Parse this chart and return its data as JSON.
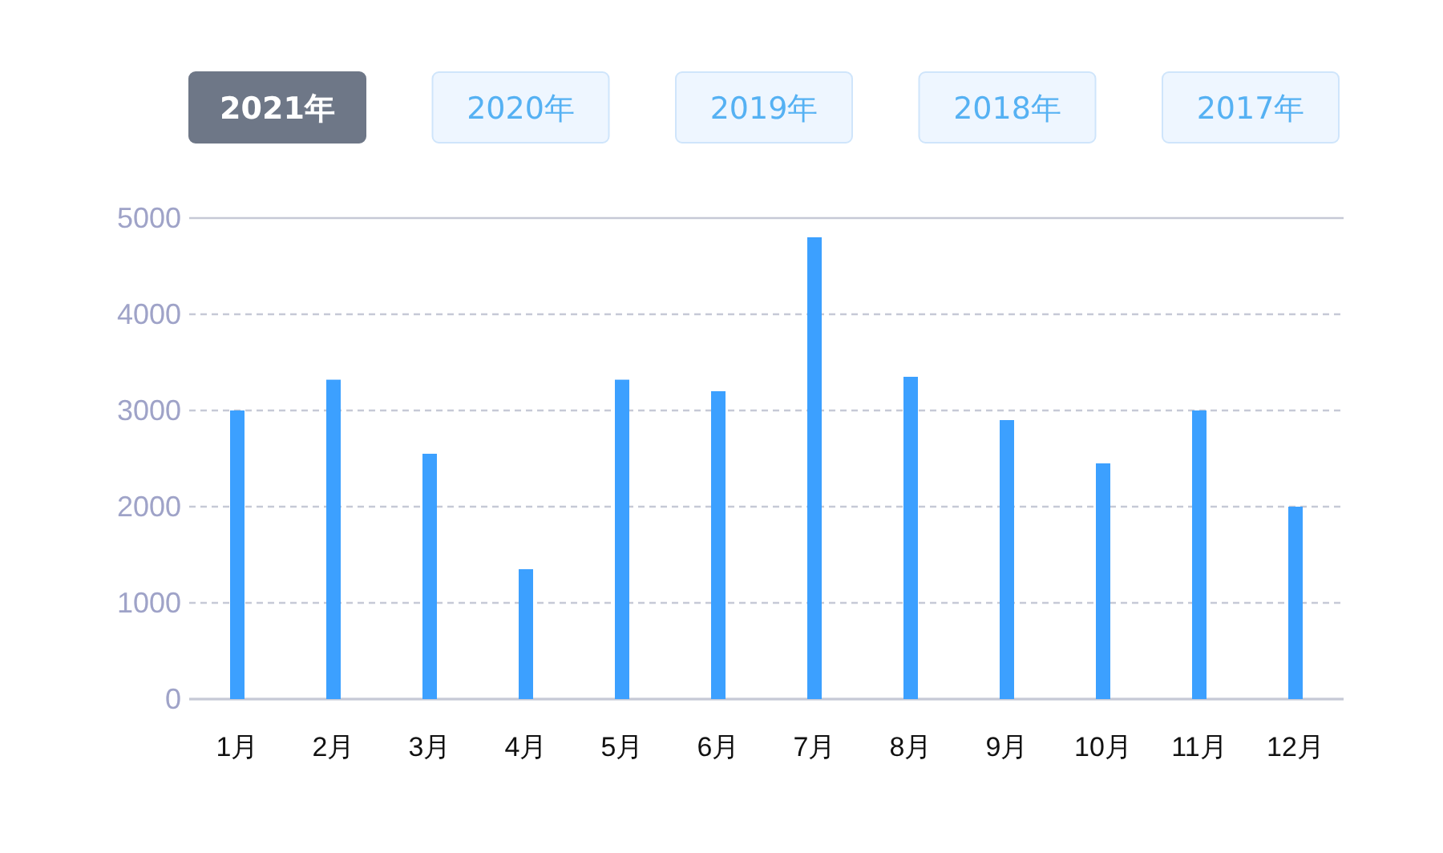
{
  "chart_data": {
    "type": "bar",
    "categories": [
      "1月",
      "2月",
      "3月",
      "4月",
      "5月",
      "6月",
      "7月",
      "8月",
      "9月",
      "10月",
      "11月",
      "12月"
    ],
    "values": [
      3000,
      3320,
      2550,
      1350,
      3320,
      3200,
      4800,
      3350,
      2900,
      2450,
      3000,
      2000
    ],
    "color": "#3ca0ff",
    "ylim": [
      0,
      5000
    ],
    "yticks": [
      0,
      1000,
      2000,
      3000,
      4000,
      5000
    ],
    "grid": "y",
    "annotations": [
      "2021年",
      "2020年",
      "2019年",
      "2018年",
      "2017年"
    ]
  }
}
